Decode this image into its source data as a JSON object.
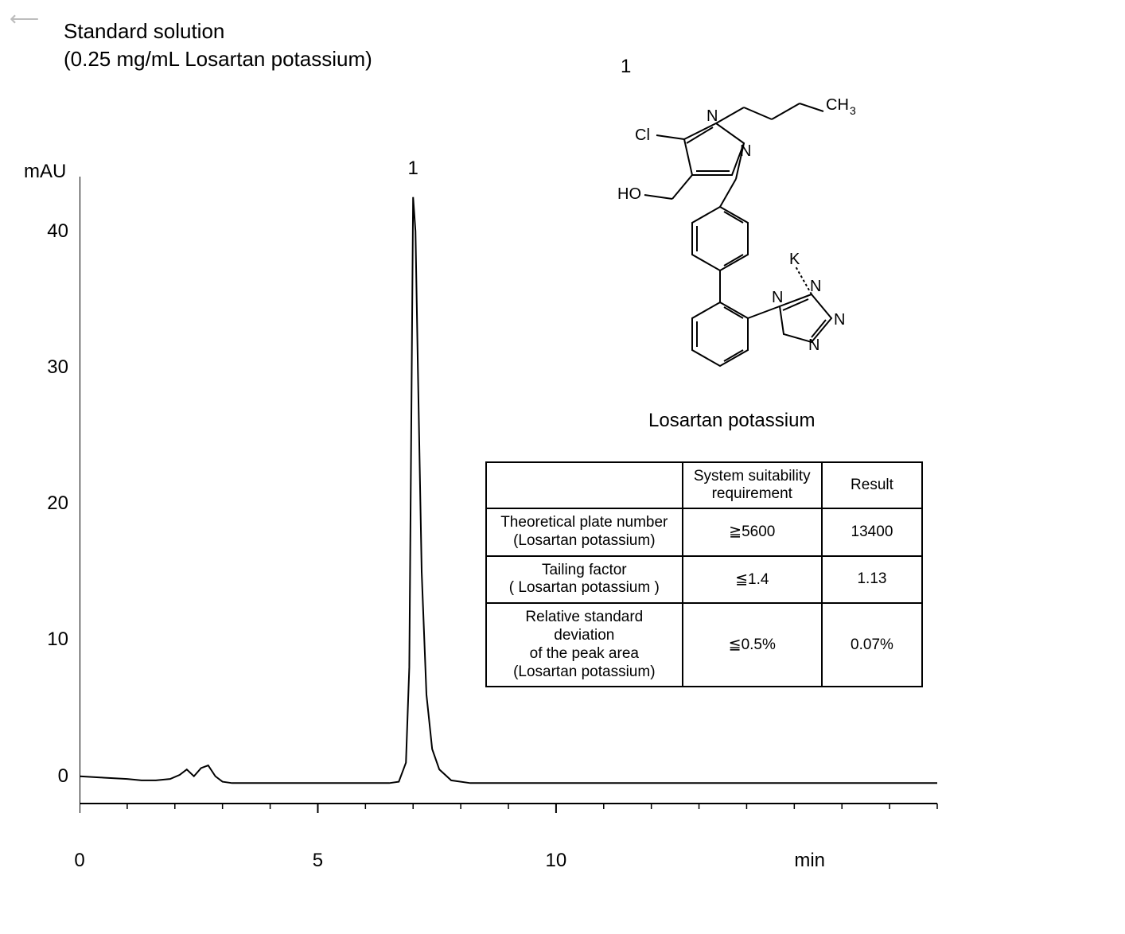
{
  "title": {
    "line1": "Standard solution",
    "line2": "(0.25 mg/mL Losartan potassium)"
  },
  "chart": {
    "type": "chromatogram",
    "y_label": "mAU",
    "x_unit": "min",
    "xlim": [
      0,
      18
    ],
    "ylim": [
      -2,
      44
    ],
    "x_ticks_major": [
      0,
      5,
      10
    ],
    "x_ticks_minor_step": 1,
    "y_ticks_major": [
      0,
      10,
      20,
      30,
      40
    ],
    "axis_color": "#000000",
    "axis_width": 2,
    "tick_length_major": 12,
    "tick_length_minor": 7,
    "line_color": "#000000",
    "line_width": 2,
    "background_color": "#ffffff",
    "tick_fontsize": 24,
    "peak_label": "1",
    "peak_retention_time": 7.0,
    "data": [
      [
        0.0,
        0.0
      ],
      [
        0.5,
        -0.1
      ],
      [
        1.0,
        -0.2
      ],
      [
        1.3,
        -0.3
      ],
      [
        1.6,
        -0.3
      ],
      [
        1.9,
        -0.2
      ],
      [
        2.1,
        0.1
      ],
      [
        2.25,
        0.5
      ],
      [
        2.4,
        0.0
      ],
      [
        2.55,
        0.6
      ],
      [
        2.7,
        0.8
      ],
      [
        2.85,
        0.0
      ],
      [
        3.0,
        -0.4
      ],
      [
        3.2,
        -0.5
      ],
      [
        3.5,
        -0.5
      ],
      [
        4.0,
        -0.5
      ],
      [
        4.5,
        -0.5
      ],
      [
        5.0,
        -0.5
      ],
      [
        5.5,
        -0.5
      ],
      [
        6.0,
        -0.5
      ],
      [
        6.5,
        -0.5
      ],
      [
        6.7,
        -0.4
      ],
      [
        6.85,
        1.0
      ],
      [
        6.92,
        8.0
      ],
      [
        6.96,
        25.0
      ],
      [
        7.0,
        42.5
      ],
      [
        7.05,
        40.0
      ],
      [
        7.1,
        30.0
      ],
      [
        7.18,
        15.0
      ],
      [
        7.28,
        6.0
      ],
      [
        7.4,
        2.0
      ],
      [
        7.55,
        0.5
      ],
      [
        7.8,
        -0.3
      ],
      [
        8.2,
        -0.5
      ],
      [
        9.0,
        -0.5
      ],
      [
        10.0,
        -0.5
      ],
      [
        11.0,
        -0.5
      ],
      [
        12.0,
        -0.5
      ],
      [
        13.0,
        -0.5
      ],
      [
        14.0,
        -0.5
      ],
      [
        15.0,
        -0.5
      ],
      [
        16.0,
        -0.5
      ],
      [
        17.0,
        -0.5
      ],
      [
        18.0,
        -0.5
      ]
    ]
  },
  "structure": {
    "peak_number": "1",
    "compound_name": "Losartan potassium",
    "atom_labels": [
      "CH",
      "3",
      "N",
      "N",
      "Cl",
      "HO",
      "K",
      "N",
      "N",
      "N",
      "N"
    ]
  },
  "table": {
    "headers": {
      "param": "",
      "req": "System  suitability requirement",
      "result": "Result"
    },
    "rows": [
      {
        "param_line1": "Theoretical plate number",
        "param_line2": "(Losartan potassium)",
        "req": "≧5600",
        "result": "13400"
      },
      {
        "param_line1": "Tailing factor",
        "param_line2": "( Losartan potassium )",
        "req": "≦1.4",
        "result": "1.13"
      },
      {
        "param_line1": "Relative standard deviation",
        "param_line2": "of the peak area",
        "param_line3": "(Losartan potassium)",
        "req": "≦0.5%",
        "result": "0.07%"
      }
    ],
    "border_color": "#000000",
    "border_width": 2,
    "fontsize": 19
  }
}
